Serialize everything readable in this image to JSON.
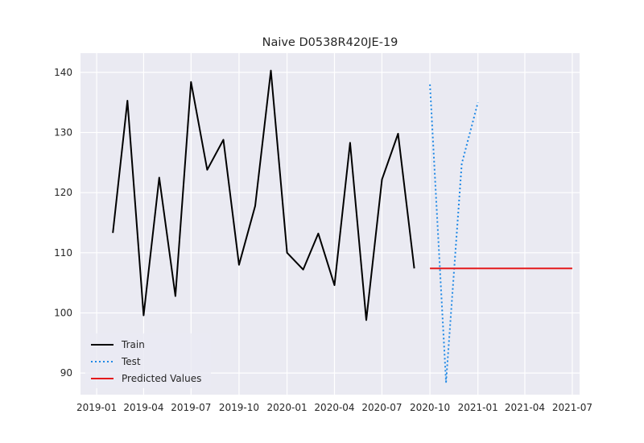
{
  "chart_data": {
    "type": "line",
    "title": "Naive D0538R420JE-19",
    "xlabel": "",
    "ylabel": "",
    "x_ticks": [
      "2019-01",
      "2019-04",
      "2019-07",
      "2019-10",
      "2020-01",
      "2020-04",
      "2020-07",
      "2020-10",
      "2021-01",
      "2021-04",
      "2021-07"
    ],
    "y_ticks": [
      90,
      100,
      110,
      120,
      130,
      140
    ],
    "xlim": [
      "2018-12-01",
      "2021-07-15"
    ],
    "ylim": [
      86.4,
      143.2
    ],
    "grid": true,
    "legend_position": "lower-left",
    "series": [
      {
        "name": "Train",
        "color": "#000000",
        "style": "solid",
        "points": [
          [
            "2019-02-01",
            113.3
          ],
          [
            "2019-03-01",
            135.3
          ],
          [
            "2019-04-01",
            99.6
          ],
          [
            "2019-05-01",
            122.5
          ],
          [
            "2019-06-01",
            102.8
          ],
          [
            "2019-07-01",
            138.4
          ],
          [
            "2019-08-01",
            123.8
          ],
          [
            "2019-09-01",
            128.8
          ],
          [
            "2019-10-01",
            108.0
          ],
          [
            "2019-11-01",
            117.8
          ],
          [
            "2019-12-01",
            140.3
          ],
          [
            "2020-01-01",
            110.0
          ],
          [
            "2020-02-01",
            107.2
          ],
          [
            "2020-03-01",
            113.2
          ],
          [
            "2020-04-01",
            104.6
          ],
          [
            "2020-05-01",
            128.3
          ],
          [
            "2020-06-01",
            98.8
          ],
          [
            "2020-07-01",
            122.2
          ],
          [
            "2020-08-01",
            129.8
          ],
          [
            "2020-09-01",
            107.4
          ]
        ]
      },
      {
        "name": "Test",
        "color": "#1e88e5",
        "style": "dotted",
        "points": [
          [
            "2020-10-01",
            138.0
          ],
          [
            "2020-11-01",
            88.5
          ],
          [
            "2020-12-01",
            124.8
          ],
          [
            "2021-01-01",
            135.0
          ]
        ]
      },
      {
        "name": "Predicted Values",
        "color": "#e41a1c",
        "style": "solid",
        "points": [
          [
            "2020-10-01",
            107.4
          ],
          [
            "2021-07-01",
            107.4
          ]
        ]
      }
    ]
  }
}
